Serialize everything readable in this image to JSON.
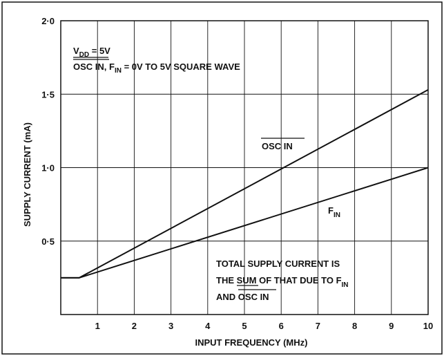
{
  "chart_data": {
    "type": "line",
    "title": "",
    "xlabel": "INPUT FREQUENCY (MHz)",
    "ylabel": "SUPPLY CURRENT (mA)",
    "xlim": [
      0,
      10
    ],
    "ylim": [
      0,
      2.0
    ],
    "x_ticks": [
      "1",
      "2",
      "3",
      "4",
      "5",
      "6",
      "7",
      "8",
      "9",
      "10"
    ],
    "y_ticks": [
      {
        "value": 0.5,
        "label": "0·5"
      },
      {
        "value": 1.0,
        "label": "1·0"
      },
      {
        "value": 1.5,
        "label": "1·5"
      },
      {
        "value": 2.0,
        "label": "2·0"
      }
    ],
    "grid": true,
    "series": [
      {
        "name": "OSC IN",
        "x": [
          0,
          0.5,
          10
        ],
        "y": [
          0.25,
          0.25,
          1.53
        ]
      },
      {
        "name": "F",
        "x": [
          0,
          0.5,
          10
        ],
        "y": [
          0.25,
          0.25,
          1.0
        ]
      }
    ],
    "series_labels": {
      "osc": "OSC IN",
      "fin_main": "F",
      "fin_sub": "IN"
    },
    "conditions": {
      "line1_main": "V",
      "line1_sub": "DD",
      "line1_rest": " = 5V",
      "line2_osc": "OSC IN",
      "line2_mid": ", F",
      "line2_sub": "IN",
      "line2_rest": " = 0V TO 5V SQUARE WAVE"
    },
    "note": {
      "line1": "TOTAL SUPPLY CURRENT IS",
      "line2_a": "THE ",
      "line2_b": "SUM",
      "line2_c": " OF THAT DUE TO F",
      "line2_sub": "IN",
      "line3_a": "AND ",
      "line3_b": "OSC IN"
    }
  }
}
